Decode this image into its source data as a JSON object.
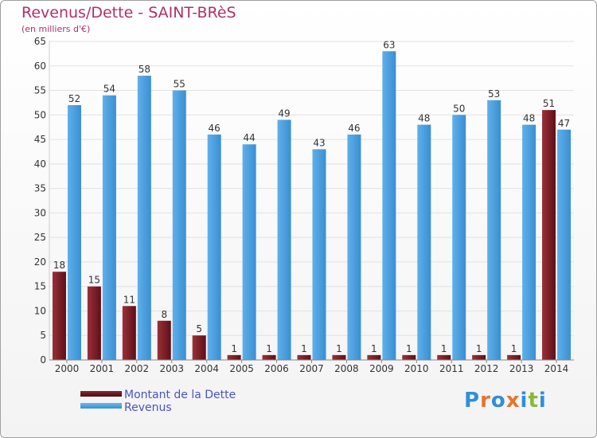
{
  "header": {
    "title": "Revenus/Dette - SAINT-BRèS",
    "subtitle": "(en milliers d'€)"
  },
  "legend": {
    "debt_label": "Montant de la Dette",
    "revenue_label": "Revenus"
  },
  "logo": {
    "text": "Proxiti",
    "letters": [
      "P",
      "r",
      "o",
      "x",
      "i",
      "t",
      "i"
    ],
    "letter_colors": [
      "#2f8fd8",
      "#e8732a",
      "#2f8fd8",
      "#e8732a",
      "#2f8fd8",
      "#8ab83a",
      "#2f8fd8"
    ]
  },
  "colors": {
    "debt": "#7a1f26",
    "revenue": "#4a9fe0",
    "title": "#b0306a",
    "legend_text": "#4a52c8",
    "axis_text": "#333333",
    "grid": "#e2e2e2"
  },
  "chart_data": {
    "type": "bar",
    "title": "Revenus/Dette - SAINT-BRèS",
    "subtitle": "(en milliers d'€)",
    "xlabel": "",
    "ylabel": "",
    "categories": [
      "2000",
      "2001",
      "2002",
      "2003",
      "2004",
      "2005",
      "2006",
      "2007",
      "2008",
      "2009",
      "2010",
      "2011",
      "2012",
      "2013",
      "2014"
    ],
    "series": [
      {
        "name": "Montant de la Dette",
        "values": [
          18,
          15,
          11,
          8,
          5,
          1,
          1,
          1,
          1,
          1,
          1,
          1,
          1,
          1,
          51
        ]
      },
      {
        "name": "Revenus",
        "values": [
          52,
          54,
          58,
          55,
          46,
          44,
          49,
          43,
          46,
          63,
          48,
          50,
          53,
          48,
          47
        ]
      }
    ],
    "ylim": [
      0,
      65
    ],
    "yticks": [
      0,
      5,
      10,
      15,
      20,
      25,
      30,
      35,
      40,
      45,
      50,
      55,
      60,
      65
    ],
    "grid": true,
    "legend_position": "bottom-left"
  }
}
